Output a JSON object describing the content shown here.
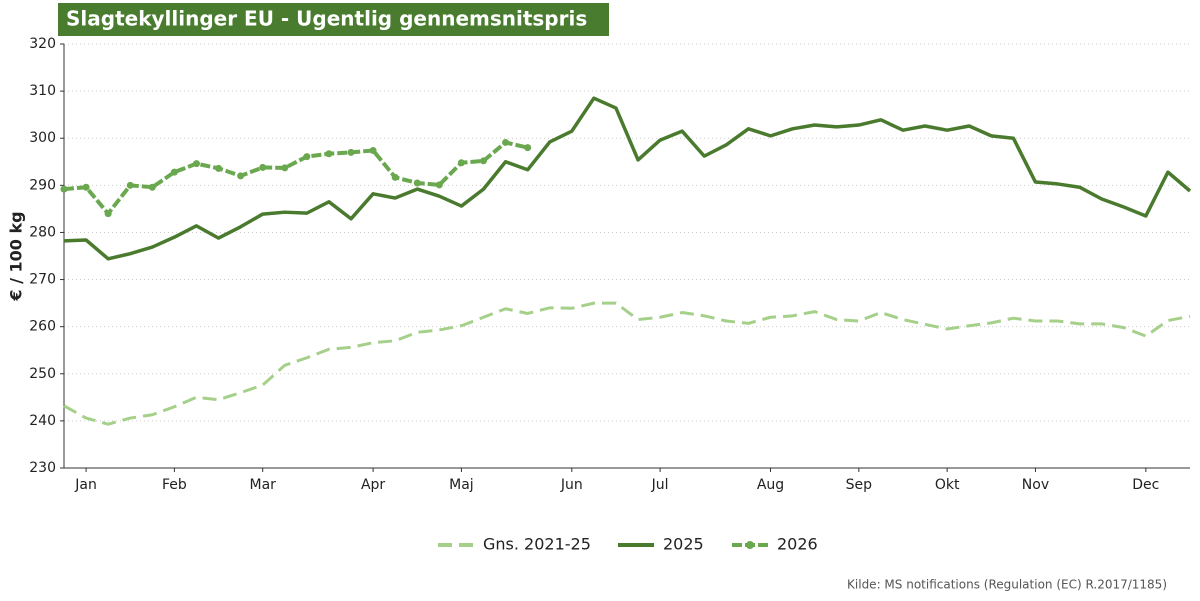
{
  "chart_data": {
    "type": "line",
    "title": "Slagtekyllinger EU - Ugentlig gennemsnitspris",
    "y_label": "€ / 100 kg",
    "source": "Kilde: MS notifications (Regulation (EC) R.2017/1185)",
    "x": [
      1,
      2,
      3,
      4,
      5,
      6,
      7,
      8,
      9,
      10,
      11,
      12,
      13,
      14,
      15,
      16,
      17,
      18,
      19,
      20,
      21,
      22,
      23,
      24,
      25,
      26,
      27,
      28,
      29,
      30,
      31,
      32,
      33,
      34,
      35,
      36,
      37,
      38,
      39,
      40,
      41,
      42,
      43,
      44,
      45,
      46,
      47,
      48,
      49,
      50,
      51,
      52
    ],
    "xlim": [
      1,
      52
    ],
    "xticks": [
      {
        "value": 2,
        "label": "Jan"
      },
      {
        "value": 6,
        "label": "Feb"
      },
      {
        "value": 10,
        "label": "Mar"
      },
      {
        "value": 15,
        "label": "Apr"
      },
      {
        "value": 19,
        "label": "Maj"
      },
      {
        "value": 24,
        "label": "Jun"
      },
      {
        "value": 28,
        "label": "Jul"
      },
      {
        "value": 33,
        "label": "Aug"
      },
      {
        "value": 37,
        "label": "Sep"
      },
      {
        "value": 41,
        "label": "Okt"
      },
      {
        "value": 45,
        "label": "Nov"
      },
      {
        "value": 50,
        "label": "Dec"
      }
    ],
    "ylim": [
      230,
      320
    ],
    "yticks": [
      230,
      240,
      250,
      260,
      270,
      280,
      290,
      300,
      310,
      320
    ],
    "grid": true,
    "legend": "bottom",
    "series": [
      {
        "name": "Gns. 2021-25",
        "color": "#a5d08a",
        "style": "dashed",
        "values": [
          243.2,
          240.6,
          239.3,
          240.6,
          241.3,
          243.0,
          245.0,
          244.5,
          246.0,
          247.6,
          251.8,
          253.4,
          255.2,
          255.6,
          256.6,
          257.0,
          258.8,
          259.3,
          260.2,
          262.0,
          263.8,
          262.8,
          264.0,
          263.9,
          265.0,
          265.0,
          261.5,
          262.0,
          263.0,
          262.3,
          261.2,
          260.7,
          262.0,
          262.3,
          263.2,
          261.5,
          261.2,
          263.0,
          261.5,
          260.5,
          259.5,
          260.2,
          260.8,
          261.8,
          261.2,
          261.2,
          260.6,
          260.6,
          259.8,
          258.0,
          261.3,
          262.2
        ]
      },
      {
        "name": "2025",
        "color": "#4a7a2e",
        "style": "solid",
        "values": [
          278.2,
          278.4,
          274.4,
          275.5,
          276.9,
          279.0,
          281.4,
          278.8,
          281.2,
          283.9,
          284.3,
          284.1,
          286.5,
          282.9,
          288.2,
          287.3,
          289.2,
          287.7,
          285.6,
          289.2,
          295.0,
          293.3,
          299.2,
          301.5,
          308.5,
          306.4,
          295.4,
          299.6,
          301.5,
          296.2,
          298.6,
          302.0,
          300.5,
          302.0,
          302.8,
          302.4,
          302.8,
          303.9,
          301.7,
          302.6,
          301.7,
          302.6,
          300.5,
          300.0,
          290.7,
          290.3,
          289.6,
          287.1,
          285.4,
          283.5,
          292.8,
          288.8
        ]
      },
      {
        "name": "2026",
        "color": "#6aa84f",
        "style": "dashed-markers",
        "values": [
          289.2,
          289.6,
          284.0,
          290.0,
          289.6,
          292.8,
          294.6,
          293.6,
          292.0,
          293.8,
          293.7,
          296.1,
          296.7,
          297.0,
          297.4,
          291.7,
          290.5,
          290.1,
          294.8,
          295.2,
          299.1,
          298.0,
          null,
          null,
          null,
          null,
          null,
          null,
          null,
          null,
          null,
          null,
          null,
          null,
          null,
          null,
          null,
          null,
          null,
          null,
          null,
          null,
          null,
          null,
          null,
          null,
          null,
          null,
          null,
          null,
          null,
          null
        ]
      }
    ]
  }
}
